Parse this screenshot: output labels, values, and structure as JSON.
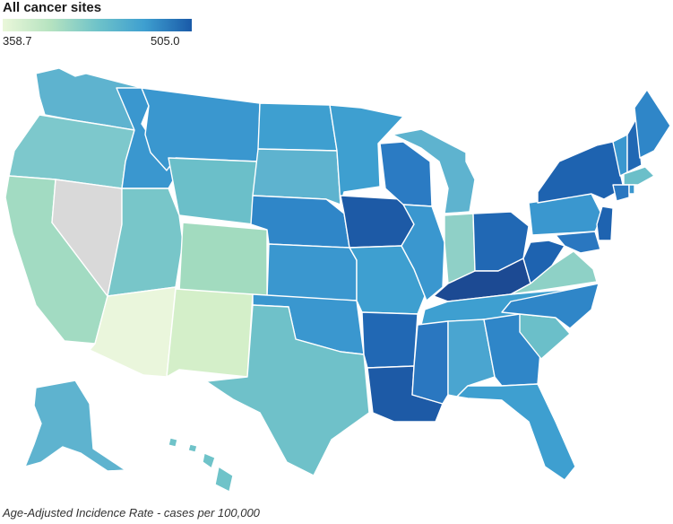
{
  "title": "All cancer sites",
  "legend": {
    "min": "358.7",
    "max": "505.0",
    "colors": [
      "#eaf7da",
      "#b6e3c0",
      "#6fc3c9",
      "#3e9fd0",
      "#1a5aa8"
    ]
  },
  "caption": "Age-Adjusted Incidence Rate - cases per 100,000",
  "no_data_color": "#d9d9d9"
}
